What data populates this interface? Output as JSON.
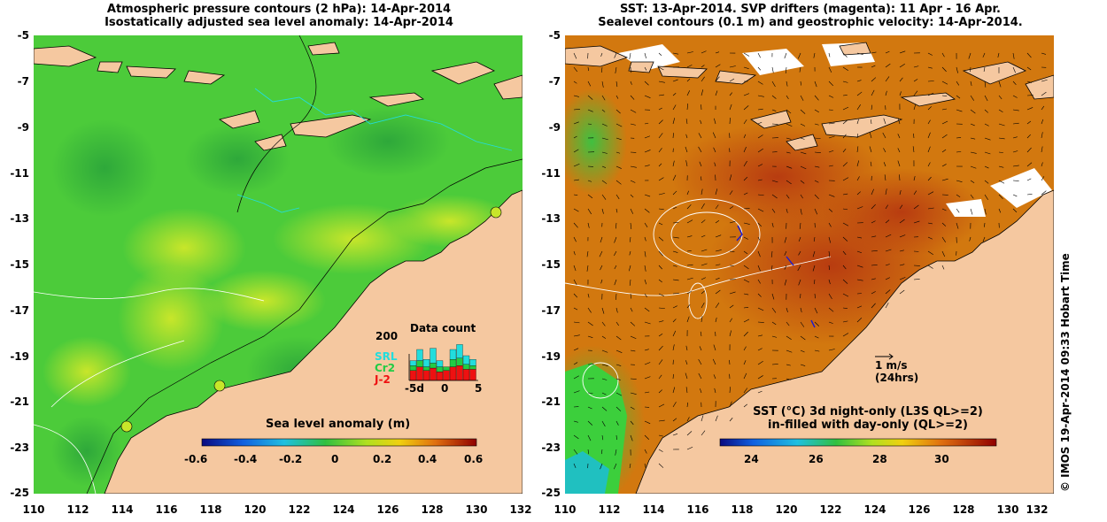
{
  "left_panel": {
    "title_line1": "Atmospheric pressure contours (2 hPa): 14-Apr-2014",
    "title_line2": "Isostatically adjusted sea level anomaly: 14-Apr-2014",
    "colorbar_title": "Sea level anomaly (m)",
    "colorbar_ticks": [
      "-0.6",
      "-0.4",
      "-0.2",
      "0",
      "0.2",
      "0.4",
      "0.6"
    ],
    "inset": {
      "title": "Data count",
      "ymax_label": "200",
      "x_ticks": [
        "-5d",
        "0",
        "5"
      ],
      "series": [
        {
          "name": "SRL",
          "color": "#22dddd"
        },
        {
          "name": "Cr2",
          "color": "#22cc44"
        },
        {
          "name": "J-2",
          "color": "#ee1111"
        }
      ],
      "bars": [
        {
          "SRL": 20,
          "Cr2": 20,
          "J2": 40
        },
        {
          "SRL": 45,
          "Cr2": 25,
          "J2": 55
        },
        {
          "SRL": 30,
          "Cr2": 15,
          "J2": 40
        },
        {
          "SRL": 60,
          "Cr2": 20,
          "J2": 50
        },
        {
          "SRL": 25,
          "Cr2": 20,
          "J2": 35
        },
        {
          "SRL": 0,
          "Cr2": 15,
          "J2": 40
        },
        {
          "SRL": 40,
          "Cr2": 30,
          "J2": 55
        },
        {
          "SRL": 55,
          "Cr2": 30,
          "J2": 60
        },
        {
          "SRL": 35,
          "Cr2": 20,
          "J2": 45
        },
        {
          "SRL": 25,
          "Cr2": 15,
          "J2": 45
        }
      ]
    }
  },
  "right_panel": {
    "title_line1": "SST: 13-Apr-2014. SVP drifters (magenta): 11 Apr - 16 Apr.",
    "title_line2": "Sealevel contours (0.1 m) and geostrophic velocity: 14-Apr-2014.",
    "colorbar_title_line1": "SST (°C)  3d night-only (L3S QL>=2)",
    "colorbar_title_line2": "in-filled with day-only (QL>=2)",
    "colorbar_ticks": [
      "24",
      "26",
      "28",
      "30"
    ],
    "scale_label": "1 m/s",
    "scale_sub": "(24hrs)"
  },
  "axes": {
    "lat_labels": [
      "-5",
      "-7",
      "-9",
      "-11",
      "-13",
      "-15",
      "-17",
      "-19",
      "-21",
      "-23",
      "-25"
    ],
    "lon_labels": [
      "110",
      "112",
      "114",
      "116",
      "118",
      "120",
      "122",
      "124",
      "126",
      "128",
      "130",
      "132"
    ]
  },
  "copyright": "© IMOS 19-Apr-2014 09:33 Hobart Time",
  "colors": {
    "land": "#f5c8a0",
    "ocean_green": "#4ccb3a",
    "ocean_yellow": "#b9e22a",
    "sst_orange": "#d2780f",
    "sst_red": "#c24a10"
  }
}
